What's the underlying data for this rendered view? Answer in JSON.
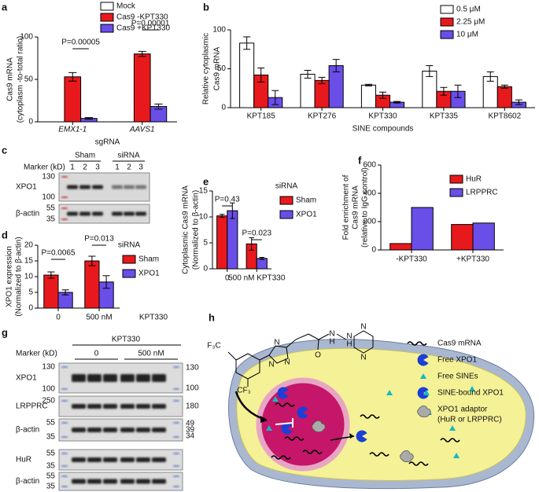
{
  "chart_data": [
    {
      "type": "bar",
      "panel": "a",
      "ylabel": [
        "Cas9 mRNA",
        "(cytoplasm -to-total ratio)"
      ],
      "xlabel": "sgRNA",
      "categories": [
        "EMX1-1",
        "AAVS1"
      ],
      "series": [
        {
          "name": "Mock",
          "color": "#ffffff",
          "values": [
            0,
            0
          ],
          "errors": [
            0,
            0
          ]
        },
        {
          "name": "Cas9 -KPT330",
          "color": "#e8191c",
          "values": [
            53,
            80
          ],
          "errors": [
            5,
            3
          ]
        },
        {
          "name": "Cas9 +KPT330",
          "color": "#6a4ee8",
          "values": [
            4,
            18
          ],
          "errors": [
            1,
            3
          ]
        }
      ],
      "ylim": [
        0,
        100
      ],
      "yticks": [
        0,
        50,
        100
      ],
      "annotations": [
        "P=0.00005",
        "P=0.00001"
      ]
    },
    {
      "type": "bar",
      "panel": "b",
      "ylabel": [
        "Relative cytoplasmic",
        "Cas9 mRNA"
      ],
      "xlabel": "SINE compounds",
      "categories": [
        "KPT185",
        "KPT276",
        "KPT330",
        "KPT335",
        "KPT8602"
      ],
      "series": [
        {
          "name": "0.5 μM",
          "color": "#ffffff",
          "values": [
            83,
            43,
            29,
            47,
            40
          ],
          "errors": [
            8,
            5,
            1,
            7,
            6
          ]
        },
        {
          "name": "2.25 μM",
          "color": "#e8191c",
          "values": [
            42,
            35,
            16,
            21,
            27
          ],
          "errors": [
            9,
            4,
            4,
            5,
            2
          ]
        },
        {
          "name": "10 μM",
          "color": "#6a4ee8",
          "values": [
            13,
            54,
            7,
            21,
            7
          ],
          "errors": [
            9,
            8,
            1,
            8,
            3
          ]
        }
      ],
      "ylim": [
        0,
        100
      ],
      "yticks": [
        0,
        50,
        100
      ]
    },
    {
      "type": "bar",
      "panel": "d",
      "ylabel": [
        "XPO1 expression",
        "(Normalized to β-actin)"
      ],
      "legend_title": "siRNA",
      "categories": [
        "0",
        "500 nM"
      ],
      "x_note": "KPT330",
      "series": [
        {
          "name": "Sham",
          "color": "#e8191c",
          "values": [
            10.5,
            15
          ],
          "errors": [
            1,
            1.5
          ]
        },
        {
          "name": "XPO1",
          "color": "#6a4ee8",
          "values": [
            5,
            8.3
          ],
          "errors": [
            0.8,
            2
          ]
        }
      ],
      "ylim": [
        0,
        20
      ],
      "yticks": [
        0,
        5,
        10,
        15,
        20
      ],
      "annotations": [
        "P=0.0065",
        "P=0.013"
      ]
    },
    {
      "type": "bar",
      "panel": "e",
      "ylabel": [
        "Cytoplasmic Cas9 mRNA",
        "(Normalized to β-actin)"
      ],
      "legend_title": "siRNA",
      "categories": [
        "0",
        "500 nM KPT330"
      ],
      "series": [
        {
          "name": "Sham",
          "color": "#e8191c",
          "values": [
            10.2,
            4.8
          ],
          "errors": [
            0.3,
            1.2
          ]
        },
        {
          "name": "XPO1",
          "color": "#6a4ee8",
          "values": [
            11.2,
            2
          ],
          "errors": [
            1.5,
            0.2
          ]
        }
      ],
      "ylim": [
        0,
        15
      ],
      "yticks": [
        0,
        5,
        10,
        15
      ],
      "annotations": [
        "P=0.43",
        "P=0.023"
      ]
    },
    {
      "type": "bar",
      "panel": "f",
      "ylabel": [
        "Fold enrichment of",
        "Cas9 mRNA",
        "(relative to IgG control)"
      ],
      "categories": [
        "-KPT330",
        "+KPT330"
      ],
      "series": [
        {
          "name": "HuR",
          "color": "#e8191c",
          "values": [
            45,
            180
          ]
        },
        {
          "name": "LRPPRC",
          "color": "#6a4ee8",
          "values": [
            300,
            190
          ]
        }
      ],
      "ylim": [
        0,
        600
      ],
      "yticks": [
        0,
        200,
        400,
        600
      ]
    }
  ],
  "blot_c": {
    "panel": "c",
    "marker": "Marker (kD)",
    "groups": [
      "Sham",
      "siRNA"
    ],
    "lanes": [
      1,
      2,
      3,
      1,
      2,
      3
    ],
    "rows": [
      {
        "label": "XPO1",
        "markers": [
          130,
          100
        ]
      },
      {
        "label": "β-actin",
        "markers": [
          55,
          35
        ]
      }
    ]
  },
  "blot_g": {
    "panel": "g",
    "title": "KPT330",
    "marker": "Marker (kD)",
    "groups": [
      "0",
      "500 nM"
    ],
    "rows": [
      {
        "label": "XPO1",
        "markers": [
          130,
          100
        ],
        "right_markers": [
          130,
          100
        ]
      },
      {
        "label": "LRPPRC",
        "markers": [
          250
        ],
        "right_markers": [
          180
        ]
      },
      {
        "label": "β-actin",
        "markers": [
          55,
          35
        ],
        "right_markers": [
          49,
          39,
          34
        ]
      },
      {
        "label": "HuR",
        "markers": [
          55,
          35
        ]
      },
      {
        "label": "β-actin",
        "markers": [
          55,
          35
        ]
      }
    ]
  },
  "diagram_h": {
    "panel": "h",
    "chem_labels": [
      "F₃C",
      "CF₃",
      "N",
      "N",
      "N",
      "O",
      "N",
      "H",
      "N",
      "H",
      "N",
      "N"
    ],
    "legend": [
      [
        "Cas9 mRNA"
      ],
      [
        "Free XPO1"
      ],
      [
        "Free SINEs"
      ],
      [
        "SINE-bound XPO1"
      ],
      [
        "XPO1 adaptor",
        "(HuR or LRPPRC)"
      ]
    ]
  }
}
